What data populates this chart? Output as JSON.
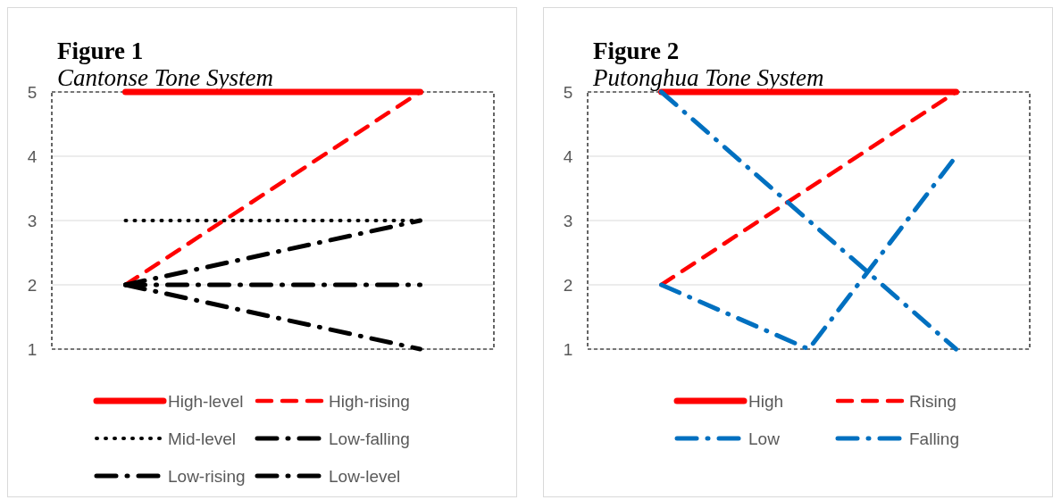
{
  "chart_data": [
    {
      "type": "line",
      "title": "Figure 1",
      "subtitle": "Cantonse Tone System",
      "categories": [
        null,
        null,
        null
      ],
      "ylim": [
        1,
        5
      ],
      "yticks": [
        1,
        2,
        3,
        4,
        5
      ],
      "grid": "y",
      "legend": "bottom",
      "marker": "none",
      "series": [
        {
          "name": "High-level",
          "color": "#ff0000",
          "values": [
            5,
            null,
            5
          ],
          "line_style": "solid"
        },
        {
          "name": "High-rising",
          "color": "#ff0000",
          "values": [
            2,
            null,
            5
          ],
          "line_style": "dashed"
        },
        {
          "name": "Mid-level",
          "color": "#000000",
          "values": [
            3,
            null,
            3
          ],
          "line_style": "dotted"
        },
        {
          "name": "Low-falling",
          "color": "#000000",
          "values": [
            2,
            null,
            1
          ],
          "line_style": "dashdot"
        },
        {
          "name": "Low-rising",
          "color": "#000000",
          "values": [
            2,
            null,
            3
          ],
          "line_style": "dashdot"
        },
        {
          "name": "Low-level",
          "color": "#000000",
          "values": [
            2,
            null,
            2
          ],
          "line_style": "dashdot"
        }
      ]
    },
    {
      "type": "line",
      "title": "Figure 2",
      "subtitle": "Putonghua Tone System",
      "categories": [
        null,
        null,
        null
      ],
      "ylim": [
        1,
        5
      ],
      "yticks": [
        1,
        2,
        3,
        4,
        5
      ],
      "grid": "y",
      "legend": "bottom",
      "marker": "none",
      "series": [
        {
          "name": "High",
          "color": "#ff0000",
          "values": [
            5,
            null,
            5
          ],
          "line_style": "solid"
        },
        {
          "name": "Rising",
          "color": "#ff0000",
          "values": [
            2,
            null,
            5
          ],
          "line_style": "dashed"
        },
        {
          "name": "Low",
          "color": "#0070c0",
          "values": [
            2,
            1,
            4
          ],
          "line_style": "dashdot"
        },
        {
          "name": "Falling",
          "color": "#0070c0",
          "values": [
            5,
            null,
            1
          ],
          "line_style": "dashdot"
        }
      ]
    }
  ]
}
